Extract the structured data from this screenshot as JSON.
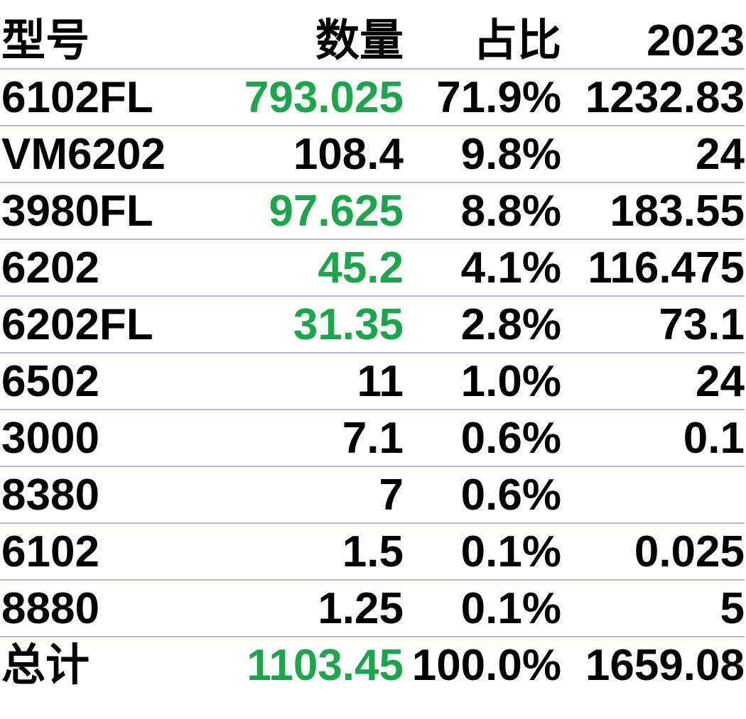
{
  "colors": {
    "highlight": "#1aa64a",
    "divider": "#a9bcd9",
    "text": "#000000"
  },
  "table": {
    "headers": {
      "model": "型号",
      "qty": "数量",
      "pct": "占比",
      "y2023": "2023"
    },
    "rows": [
      {
        "model": "6102FL",
        "qty": "793.025",
        "pct": "71.9%",
        "y2023": "1232.83",
        "qty_highlight": true
      },
      {
        "model": "VM6202",
        "qty": "108.4",
        "pct": "9.8%",
        "y2023": "24",
        "qty_highlight": false
      },
      {
        "model": "3980FL",
        "qty": "97.625",
        "pct": "8.8%",
        "y2023": "183.55",
        "qty_highlight": true
      },
      {
        "model": "6202",
        "qty": "45.2",
        "pct": "4.1%",
        "y2023": "116.475",
        "qty_highlight": true
      },
      {
        "model": "6202FL",
        "qty": "31.35",
        "pct": "2.8%",
        "y2023": "73.1",
        "qty_highlight": true
      },
      {
        "model": "6502",
        "qty": "11",
        "pct": "1.0%",
        "y2023": "24",
        "qty_highlight": false
      },
      {
        "model": "3000",
        "qty": "7.1",
        "pct": "0.6%",
        "y2023": "0.1",
        "qty_highlight": false
      },
      {
        "model": "8380",
        "qty": "7",
        "pct": "0.6%",
        "y2023": "",
        "qty_highlight": false
      },
      {
        "model": "6102",
        "qty": "1.5",
        "pct": "0.1%",
        "y2023": "0.025",
        "qty_highlight": false
      },
      {
        "model": "8880",
        "qty": "1.25",
        "pct": "0.1%",
        "y2023": "5",
        "qty_highlight": false
      }
    ],
    "total": {
      "model": "总计",
      "qty": "1103.45",
      "pct": "100.0%",
      "y2023": "1659.08",
      "qty_highlight": true
    }
  }
}
